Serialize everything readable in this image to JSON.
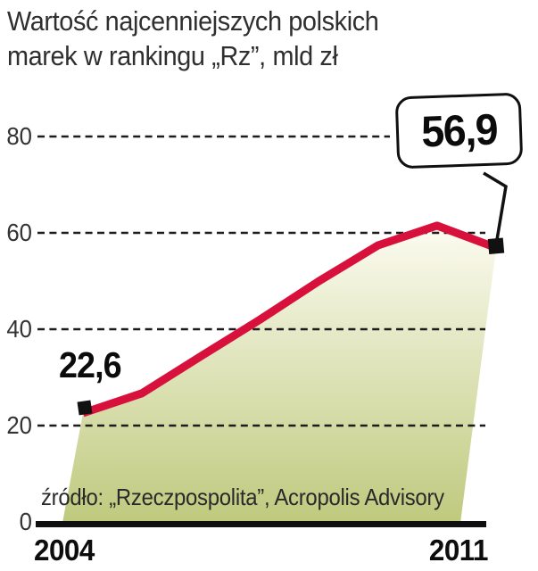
{
  "title": {
    "line1": "Wartość najcenniejszych polskich",
    "line2": "marek w rankingu „Rz”, mld zł"
  },
  "point_labels": {
    "start": "22,6",
    "end": "56,9"
  },
  "axis": {
    "y_ticks": [
      "80",
      "60",
      "40",
      "20",
      "0"
    ],
    "x_ticks": [
      "2004",
      "2011"
    ]
  },
  "source": "źródło: „Rzeczpospolita”, Acropolis Advisory",
  "colors": {
    "line": "#d8113c",
    "area_top": "#fdfcf3",
    "area_bottom": "#bec97c",
    "grid": "#1c1c1c",
    "axis_text": "#333333",
    "baseline": "#0f0f0f",
    "marker": "#111111"
  },
  "chart_data": {
    "type": "line",
    "title": "Wartość najcenniejszych polskich marek w rankingu „Rz”, mld zł",
    "unit": "mld zł",
    "x": [
      2004,
      2005,
      2006,
      2007,
      2008,
      2009,
      2010,
      2011
    ],
    "values": [
      22.6,
      26.7,
      34.4,
      42.0,
      50.0,
      57.4,
      61.5,
      56.9
    ],
    "labeled_values": {
      "2004": 22.6,
      "2011": 56.9
    },
    "ylim": [
      0,
      80
    ],
    "y_gridlines": [
      20,
      40,
      60,
      80
    ],
    "gridline_style": "dashed",
    "x_axis_labels": [
      "2004",
      "2011"
    ],
    "area": "gradient fill under line, pale cream fading to olive green at bottom",
    "legend": "none"
  }
}
